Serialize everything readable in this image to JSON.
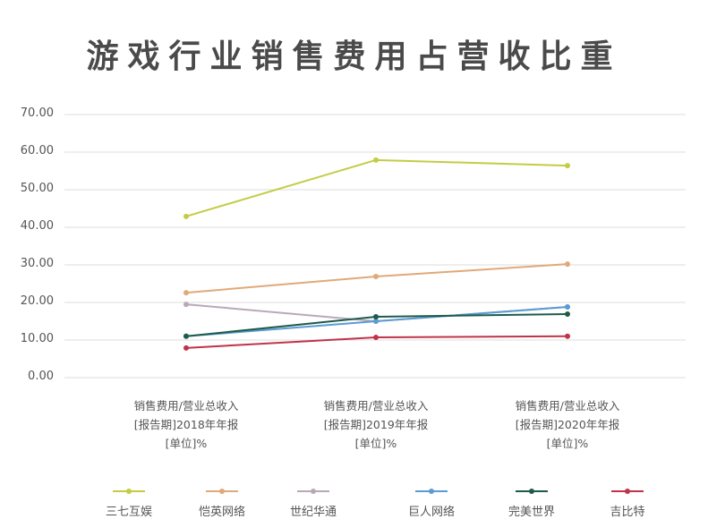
{
  "title": "游戏行业销售费用占营收比重",
  "chart_data": {
    "type": "line",
    "title": "游戏行业销售费用占营收比重",
    "xlabel": "",
    "ylabel": "",
    "ylim": [
      0,
      70
    ],
    "yticks": [
      "70.00",
      "60.00",
      "50.00",
      "40.00",
      "30.00",
      "20.00",
      "10.00",
      "0.00"
    ],
    "grid": true,
    "legend_position": "bottom",
    "categories": [
      [
        "销售费用/营业总收入",
        "[报告期]2018年年报",
        "[单位]%"
      ],
      [
        "销售费用/营业总收入",
        "[报告期]2019年年报",
        "[单位]%"
      ],
      [
        "销售费用/营业总收入",
        "[报告期]2020年年报",
        "[单位]%"
      ]
    ],
    "series": [
      {
        "name": "三七互娱",
        "color": "#c4cc45",
        "values": [
          42.9,
          57.9,
          56.4
        ]
      },
      {
        "name": "恺英网络",
        "color": "#e0a979",
        "values": [
          22.6,
          26.9,
          30.2
        ]
      },
      {
        "name": "世纪华通",
        "color": "#b9a9b8",
        "values": [
          19.5,
          15.0,
          18.8
        ]
      },
      {
        "name": "巨人网络",
        "color": "#5b9bd5",
        "values": [
          11.0,
          15.0,
          18.8
        ]
      },
      {
        "name": "完美世界",
        "color": "#1e5b4a",
        "values": [
          11.0,
          16.2,
          16.9
        ]
      },
      {
        "name": "吉比特",
        "color": "#c0334a",
        "values": [
          7.9,
          10.7,
          11.0
        ]
      }
    ]
  }
}
